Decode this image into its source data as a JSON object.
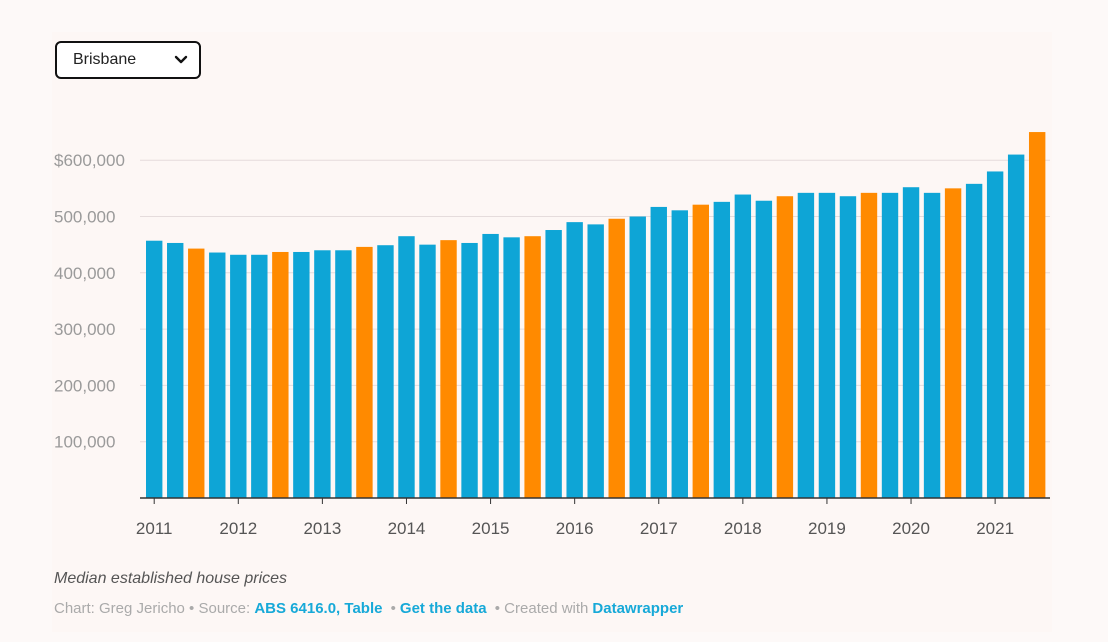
{
  "dropdown": {
    "selected": "Brisbane"
  },
  "colors": {
    "blue": "#0ea5d6",
    "orange": "#ff8a00",
    "grid": "#e5dcdc",
    "axis": "#333333"
  },
  "chart_data": {
    "type": "bar",
    "title": "Median established house prices",
    "xlabel": "",
    "ylabel": "",
    "ylim": [
      0,
      650000
    ],
    "ytick_values": [
      100000,
      200000,
      300000,
      400000,
      500000,
      600000
    ],
    "ytick_labels": [
      "100,000",
      "200,000",
      "300,000",
      "400,000",
      "500,000",
      "$600,000"
    ],
    "xtick_labels": [
      "2011",
      "2012",
      "2013",
      "2014",
      "2015",
      "2016",
      "2017",
      "2018",
      "2019",
      "2020",
      "2021"
    ],
    "values": [
      457000,
      453000,
      443000,
      436000,
      432000,
      432000,
      437000,
      437000,
      440000,
      440000,
      446000,
      449000,
      465000,
      450000,
      458000,
      453000,
      469000,
      463000,
      465000,
      476000,
      490000,
      486000,
      496000,
      500000,
      517000,
      511000,
      521000,
      526000,
      539000,
      528000,
      536000,
      542000,
      542000,
      536000,
      542000,
      542000,
      552000,
      542000,
      550000,
      558000,
      580000,
      610000,
      650000
    ],
    "highlight": [
      false,
      false,
      true,
      false,
      false,
      false,
      true,
      false,
      false,
      false,
      true,
      false,
      false,
      false,
      true,
      false,
      false,
      false,
      true,
      false,
      false,
      false,
      true,
      false,
      false,
      false,
      true,
      false,
      false,
      false,
      true,
      false,
      false,
      false,
      true,
      false,
      false,
      false,
      true,
      false,
      false,
      false,
      true
    ]
  },
  "footer": {
    "caption": "Median established house prices",
    "credit_prefix": "Chart: Greg Jericho • Source: ",
    "source_link": "ABS 6416.0, Table",
    "sep1": "•",
    "data_link": "Get the data",
    "sep2": "• Created with",
    "tool_link": "Datawrapper"
  }
}
